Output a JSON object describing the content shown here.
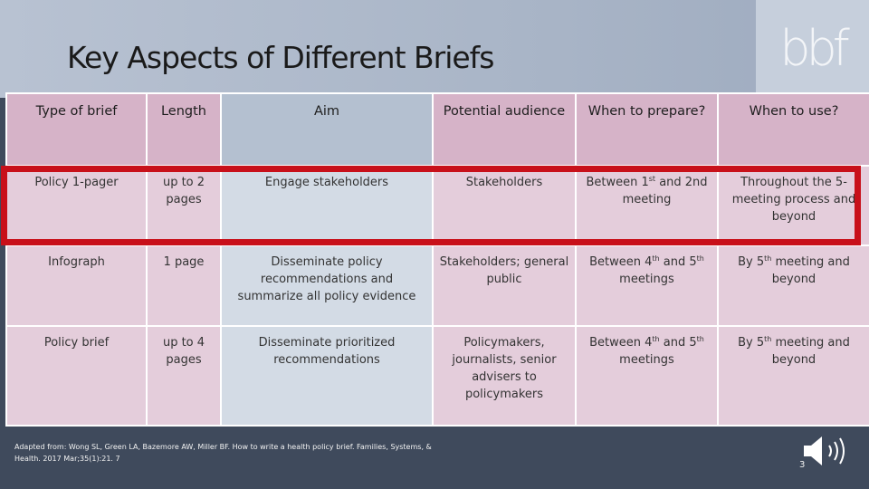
{
  "slide": {
    "title": "Key Aspects of Different Briefs",
    "logo_text": "bbf",
    "citation": "Adapted from: Wong SL, Green LA, Bazemore AW, Miller BF. How to write a health policy brief. Families, Systems, & Health. 2017 Mar;35(1):21. 7",
    "page_number": "3"
  },
  "table": {
    "headers": [
      "Type of brief",
      "Length",
      "Aim",
      "Potential audience",
      "When to prepare?",
      "When to use?"
    ],
    "rows": [
      {
        "type": "Policy 1-pager",
        "length": "up to 2 pages",
        "aim": "Engage stakeholders",
        "audience": "Stakeholders",
        "prepare_a": "Between 1",
        "prepare_sup1": "st",
        "prepare_b": " and 2nd meeting",
        "use": "Throughout the 5-meeting process and beyond"
      },
      {
        "type": "Infograph",
        "length": "1 page",
        "aim": "Disseminate policy recommendations and summarize all policy evidence",
        "audience": "Stakeholders; general public",
        "prepare_a": "Between 4",
        "prepare_sup1": "th",
        "prepare_b": " and 5",
        "prepare_sup2": "th",
        "prepare_c": " meetings",
        "use_a": "By 5",
        "use_sup": "th",
        "use_b": " meeting and beyond"
      },
      {
        "type": "Policy brief",
        "length": "up to 4 pages",
        "aim": "Disseminate prioritized recommendations",
        "audience": "Policymakers, journalists, senior advisers to policymakers",
        "prepare_a": "Between 4",
        "prepare_sup1": "th",
        "prepare_b": " and 5",
        "prepare_sup2": "th",
        "prepare_c": " meetings",
        "use_a": "By 5",
        "use_sup": "th",
        "use_b": " meeting and beyond"
      }
    ]
  },
  "colors": {
    "highlight_border": "#c8101a",
    "title_band": "#b8c2d2",
    "footer": "#3f4a5c"
  },
  "icons": {
    "audio": "speaker-icon"
  }
}
